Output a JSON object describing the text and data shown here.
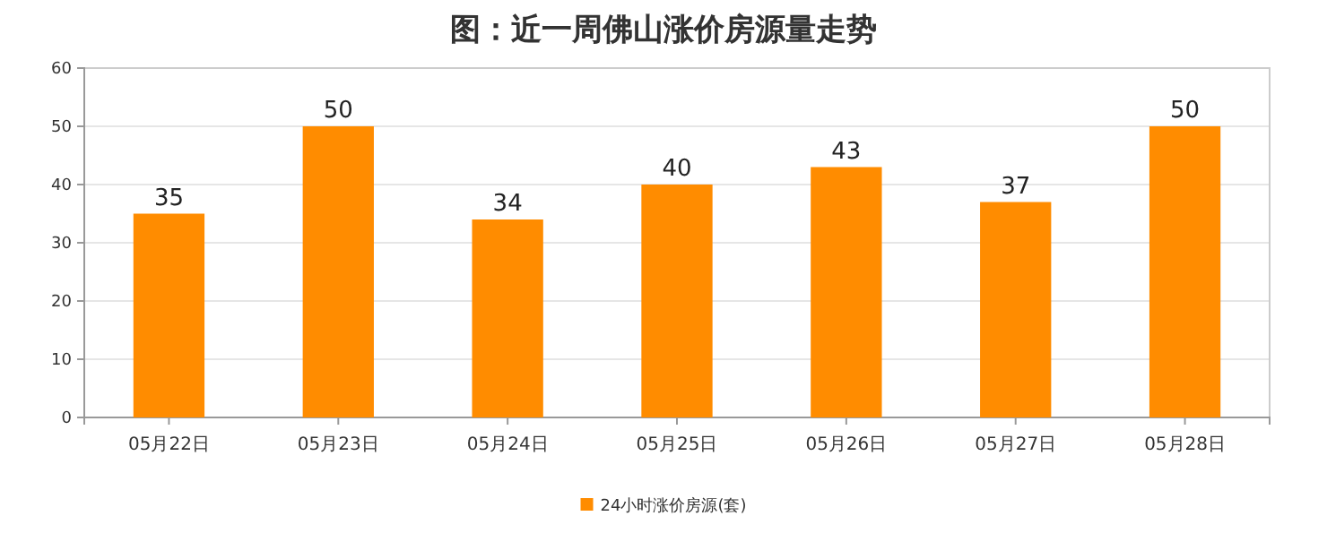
{
  "chart_data": {
    "type": "bar",
    "title": "图：近一周佛山涨价房源量走势",
    "categories": [
      "05月22日",
      "05月23日",
      "05月24日",
      "05月25日",
      "05月26日",
      "05月27日",
      "05月28日"
    ],
    "series": [
      {
        "name": "24小时涨价房源(套)",
        "color": "#ff8c00",
        "values": [
          35,
          50,
          34,
          40,
          43,
          37,
          50
        ]
      }
    ],
    "ylim": [
      0,
      60
    ],
    "yticks": [
      0,
      10,
      20,
      30,
      40,
      50,
      60
    ],
    "grid": "y",
    "legend": "bottom",
    "data_labels": true
  }
}
